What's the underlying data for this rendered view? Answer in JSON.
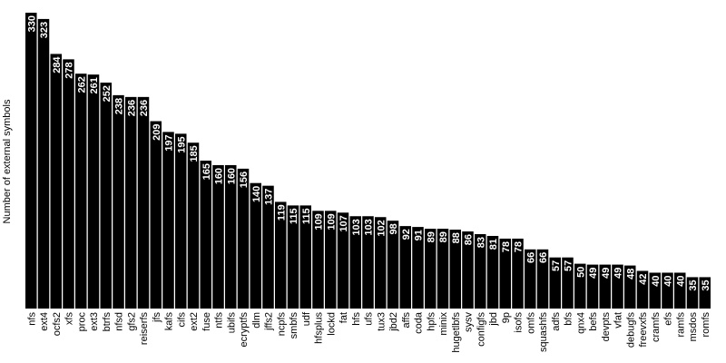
{
  "chart_data": {
    "type": "bar",
    "title": "",
    "xlabel": "",
    "ylabel": "Number of external symbols",
    "ylim": [
      0,
      330
    ],
    "grid": false,
    "legend": "none",
    "bar_color": "#000000",
    "label_color": "#ffffff",
    "categories": [
      "nfs",
      "ext4",
      "ocfs2",
      "xfs",
      "proc",
      "ext3",
      "btrfs",
      "nfsd",
      "gfs2",
      "reiserfs",
      "jfs",
      "kafs",
      "cifs",
      "ext2",
      "fuse",
      "ntfs",
      "ubifs",
      "ecryptfs",
      "dlm",
      "jffs2",
      "ncpfs",
      "smbfs",
      "udf",
      "hfsplus",
      "lockd",
      "fat",
      "hfs",
      "ufs",
      "tux3",
      "jbd2",
      "affs",
      "coda",
      "hpfs",
      "minix",
      "hugetlbfs",
      "sysv",
      "configfs",
      "jbd",
      "9p",
      "isofs",
      "omfs",
      "squashfs",
      "adfs",
      "bfs",
      "qnx4",
      "befs",
      "devpts",
      "vfat",
      "debugfs",
      "freevxfs",
      "cramfs",
      "efs",
      "ramfs",
      "msdos",
      "romfs"
    ],
    "values": [
      330,
      323,
      284,
      278,
      262,
      261,
      252,
      238,
      236,
      236,
      209,
      197,
      195,
      185,
      165,
      160,
      160,
      156,
      140,
      137,
      119,
      115,
      115,
      109,
      109,
      107,
      103,
      103,
      102,
      98,
      92,
      91,
      89,
      89,
      88,
      86,
      83,
      81,
      78,
      78,
      66,
      66,
      57,
      57,
      50,
      49,
      49,
      49,
      48,
      42,
      40,
      40,
      40,
      35,
      35
    ]
  }
}
